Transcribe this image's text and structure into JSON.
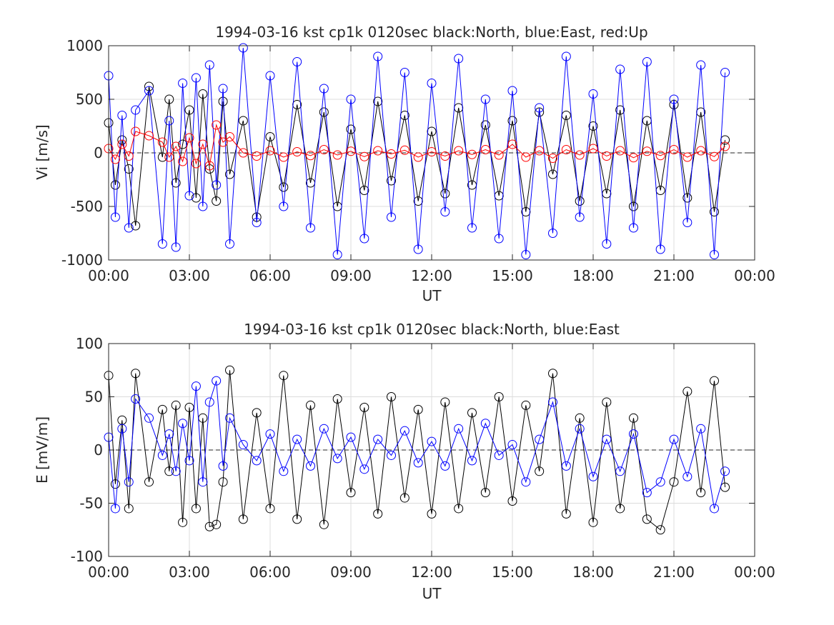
{
  "figure": {
    "background": "#ffffff"
  },
  "chart_data": [
    {
      "type": "line",
      "title": "1994-03-16 kst cp1k 0120sec black:North, blue:East, red:Up",
      "xlabel": "UT",
      "ylabel": "Vi [m/s]",
      "xlim": [
        0,
        24
      ],
      "ylim": [
        -1000,
        1000
      ],
      "xtick_labels": [
        "00:00",
        "03:00",
        "06:00",
        "09:00",
        "12:00",
        "15:00",
        "18:00",
        "21:00",
        "00:00"
      ],
      "xtick_values": [
        0,
        3,
        6,
        9,
        12,
        15,
        18,
        21,
        24
      ],
      "ytick_labels": [
        "-1000",
        "-500",
        "0",
        "500",
        "1000"
      ],
      "ytick_values": [
        -1000,
        -500,
        0,
        500,
        1000
      ],
      "grid": true,
      "zero_line": true,
      "marker": "open-circle",
      "series": [
        {
          "name": "North",
          "color": "#000000",
          "x": [
            0.0,
            0.25,
            0.5,
            0.75,
            1.0,
            1.5,
            2.0,
            2.25,
            2.5,
            2.75,
            3.0,
            3.25,
            3.5,
            3.75,
            4.0,
            4.25,
            4.5,
            5.0,
            5.5,
            6.0,
            6.5,
            7.0,
            7.5,
            8.0,
            8.5,
            9.0,
            9.5,
            10.0,
            10.5,
            11.0,
            11.5,
            12.0,
            12.5,
            13.0,
            13.5,
            14.0,
            14.5,
            15.0,
            15.5,
            16.0,
            16.5,
            17.0,
            17.5,
            18.0,
            18.5,
            19.0,
            19.5,
            20.0,
            20.5,
            21.0,
            21.5,
            22.0,
            22.5,
            22.9
          ],
          "y": [
            280,
            -300,
            120,
            -150,
            -680,
            620,
            -40,
            500,
            -280,
            80,
            400,
            -420,
            550,
            -150,
            -450,
            480,
            -200,
            300,
            -600,
            150,
            -320,
            450,
            -280,
            380,
            -500,
            220,
            -350,
            480,
            -260,
            350,
            -450,
            200,
            -380,
            420,
            -300,
            260,
            -400,
            300,
            -550,
            380,
            -200,
            350,
            -450,
            250,
            -380,
            400,
            -500,
            300,
            -350,
            450,
            -420,
            380,
            -550,
            120
          ]
        },
        {
          "name": "East",
          "color": "#0000ff",
          "x": [
            0.0,
            0.25,
            0.5,
            0.75,
            1.0,
            1.5,
            2.0,
            2.25,
            2.5,
            2.75,
            3.0,
            3.25,
            3.5,
            3.75,
            4.0,
            4.25,
            4.5,
            5.0,
            5.5,
            6.0,
            6.5,
            7.0,
            7.5,
            8.0,
            8.5,
            9.0,
            9.5,
            10.0,
            10.5,
            11.0,
            11.5,
            12.0,
            12.5,
            13.0,
            13.5,
            14.0,
            14.5,
            15.0,
            15.5,
            16.0,
            16.5,
            17.0,
            17.5,
            18.0,
            18.5,
            19.0,
            19.5,
            20.0,
            20.5,
            21.0,
            21.5,
            22.0,
            22.5,
            22.9
          ],
          "y": [
            720,
            -600,
            350,
            -700,
            400,
            580,
            -850,
            300,
            -880,
            650,
            -400,
            700,
            -500,
            820,
            -300,
            600,
            -850,
            980,
            -650,
            720,
            -500,
            850,
            -700,
            600,
            -950,
            500,
            -800,
            900,
            -600,
            750,
            -900,
            650,
            -550,
            880,
            -700,
            500,
            -800,
            580,
            -950,
            420,
            -750,
            900,
            -600,
            550,
            -850,
            780,
            -700,
            850,
            -900,
            500,
            -650,
            820,
            -950,
            750
          ]
        },
        {
          "name": "Up",
          "color": "#ff0000",
          "x": [
            0.0,
            0.25,
            0.5,
            0.75,
            1.0,
            1.5,
            2.0,
            2.25,
            2.5,
            2.75,
            3.0,
            3.25,
            3.5,
            3.75,
            4.0,
            4.25,
            4.5,
            5.0,
            5.5,
            6.0,
            6.5,
            7.0,
            7.5,
            8.0,
            8.5,
            9.0,
            9.5,
            10.0,
            10.5,
            11.0,
            11.5,
            12.0,
            12.5,
            13.0,
            13.5,
            14.0,
            14.5,
            15.0,
            15.5,
            16.0,
            16.5,
            17.0,
            17.5,
            18.0,
            18.5,
            19.0,
            19.5,
            20.0,
            20.5,
            21.0,
            21.5,
            22.0,
            22.5,
            22.9
          ],
          "y": [
            40,
            -60,
            80,
            -30,
            200,
            160,
            100,
            -40,
            60,
            -80,
            140,
            -100,
            80,
            -120,
            260,
            100,
            150,
            0,
            -30,
            20,
            -40,
            10,
            -25,
            30,
            -20,
            15,
            -35,
            20,
            -10,
            25,
            -40,
            10,
            -30,
            20,
            -15,
            30,
            -20,
            80,
            -40,
            20,
            -50,
            30,
            -20,
            40,
            -30,
            20,
            -45,
            15,
            -25,
            30,
            -40,
            20,
            -35,
            60
          ]
        }
      ]
    },
    {
      "type": "line",
      "title": "1994-03-16 kst cp1k 0120sec black:North, blue:East",
      "xlabel": "UT",
      "ylabel": "E [mV/m]",
      "xlim": [
        0,
        24
      ],
      "ylim": [
        -100,
        100
      ],
      "xtick_labels": [
        "00:00",
        "03:00",
        "06:00",
        "09:00",
        "12:00",
        "15:00",
        "18:00",
        "21:00",
        "00:00"
      ],
      "xtick_values": [
        0,
        3,
        6,
        9,
        12,
        15,
        18,
        21,
        24
      ],
      "ytick_labels": [
        "-100",
        "-50",
        "0",
        "50",
        "100"
      ],
      "ytick_values": [
        -100,
        -50,
        0,
        50,
        100
      ],
      "grid": true,
      "zero_line": true,
      "marker": "open-circle",
      "series": [
        {
          "name": "North",
          "color": "#000000",
          "x": [
            0.0,
            0.25,
            0.5,
            0.75,
            1.0,
            1.5,
            2.0,
            2.25,
            2.5,
            2.75,
            3.0,
            3.25,
            3.5,
            3.75,
            4.0,
            4.25,
            4.5,
            5.0,
            5.5,
            6.0,
            6.5,
            7.0,
            7.5,
            8.0,
            8.5,
            9.0,
            9.5,
            10.0,
            10.5,
            11.0,
            11.5,
            12.0,
            12.5,
            13.0,
            13.5,
            14.0,
            14.5,
            15.0,
            15.5,
            16.0,
            16.5,
            17.0,
            17.5,
            18.0,
            18.5,
            19.0,
            19.5,
            20.0,
            20.5,
            21.0,
            21.5,
            22.0,
            22.5,
            22.9
          ],
          "y": [
            70,
            -32,
            28,
            -55,
            72,
            -30,
            38,
            -20,
            42,
            -68,
            40,
            -55,
            30,
            -72,
            -70,
            -30,
            75,
            -65,
            35,
            -55,
            70,
            -65,
            42,
            -70,
            48,
            -40,
            40,
            -60,
            50,
            -45,
            38,
            -60,
            45,
            -55,
            35,
            -40,
            50,
            -48,
            42,
            -20,
            72,
            -60,
            30,
            -68,
            45,
            -55,
            30,
            -65,
            -75,
            -30,
            55,
            -40,
            65,
            -35
          ]
        },
        {
          "name": "East",
          "color": "#0000ff",
          "x": [
            0.0,
            0.25,
            0.5,
            0.75,
            1.0,
            1.5,
            2.0,
            2.25,
            2.5,
            2.75,
            3.0,
            3.25,
            3.5,
            3.75,
            4.0,
            4.25,
            4.5,
            5.0,
            5.5,
            6.0,
            6.5,
            7.0,
            7.5,
            8.0,
            8.5,
            9.0,
            9.5,
            10.0,
            10.5,
            11.0,
            11.5,
            12.0,
            12.5,
            13.0,
            13.5,
            14.0,
            14.5,
            15.0,
            15.5,
            16.0,
            16.5,
            17.0,
            17.5,
            18.0,
            18.5,
            19.0,
            19.5,
            20.0,
            20.5,
            21.0,
            21.5,
            22.0,
            22.5,
            22.9
          ],
          "y": [
            12,
            -55,
            20,
            -30,
            48,
            30,
            -5,
            15,
            -20,
            25,
            -10,
            60,
            -30,
            45,
            65,
            -15,
            30,
            5,
            -10,
            15,
            -20,
            10,
            -15,
            20,
            -8,
            12,
            -18,
            10,
            -5,
            18,
            -12,
            8,
            -15,
            20,
            -10,
            25,
            -5,
            5,
            -30,
            10,
            45,
            -15,
            20,
            -25,
            10,
            -20,
            15,
            -40,
            -30,
            10,
            -25,
            20,
            -55,
            -20
          ]
        }
      ]
    }
  ]
}
